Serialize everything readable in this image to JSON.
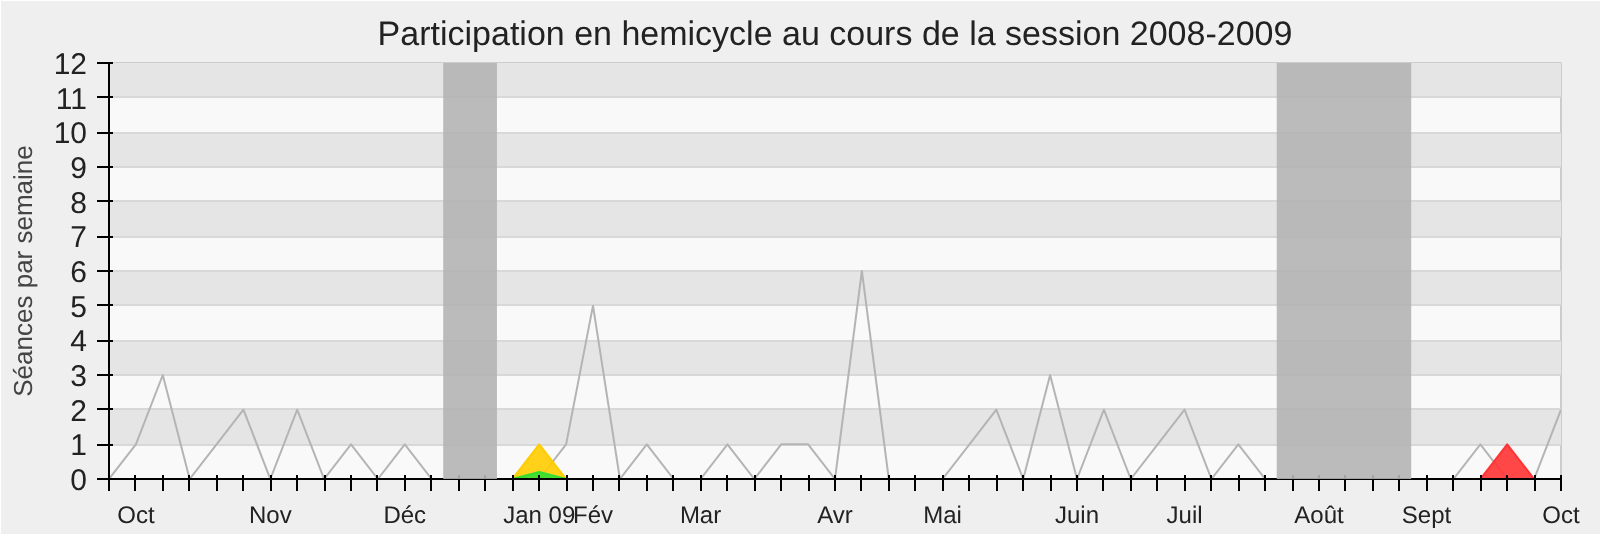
{
  "chart_data": {
    "type": "line",
    "title": "Participation en hemicycle au cours de la session 2008-2009",
    "ylabel": "Séances par semaine",
    "x": [
      "2008-09-29",
      "2008-10-06",
      "2008-10-13",
      "2008-10-20",
      "2008-10-27",
      "2008-11-03",
      "2008-11-10",
      "2008-11-17",
      "2008-11-24",
      "2008-12-01",
      "2008-12-08",
      "2008-12-15",
      "2008-12-22",
      "2008-12-29",
      "2009-01-05",
      "2009-01-12",
      "2009-01-19",
      "2009-01-26",
      "2009-02-02",
      "2009-02-09",
      "2009-02-16",
      "2009-02-23",
      "2009-03-02",
      "2009-03-09",
      "2009-03-16",
      "2009-03-23",
      "2009-03-30",
      "2009-04-06",
      "2009-04-13",
      "2009-04-20",
      "2009-04-27",
      "2009-05-04",
      "2009-05-11",
      "2009-05-18",
      "2009-05-25",
      "2009-06-01",
      "2009-06-08",
      "2009-06-15",
      "2009-06-22",
      "2009-06-29",
      "2009-07-06",
      "2009-07-13",
      "2009-07-20",
      "2009-07-27",
      "2009-08-03",
      "2009-08-10",
      "2009-08-17",
      "2009-08-24",
      "2009-08-31",
      "2009-09-07",
      "2009-09-14",
      "2009-09-21",
      "2009-09-28",
      "2009-10-05",
      "2009-10-12"
    ],
    "series": [
      {
        "color": "#b4b4b4",
        "values": [
          0,
          1,
          3,
          0,
          1,
          2,
          0,
          2,
          0,
          1,
          0,
          1,
          0,
          null,
          null,
          0,
          0,
          1,
          5,
          0,
          1,
          0,
          0,
          1,
          0,
          1,
          1,
          0,
          6,
          0,
          0,
          0,
          1,
          2,
          0,
          3,
          0,
          2,
          0,
          1,
          2,
          0,
          1,
          0,
          null,
          null,
          null,
          null,
          null,
          0,
          0,
          1,
          0,
          0,
          2
        ]
      },
      {
        "type": "area",
        "color": "#ffcc00",
        "x": [
          "2009-01-12",
          "2009-01-19",
          "2009-01-26"
        ],
        "values": [
          0,
          1,
          0
        ]
      },
      {
        "type": "area",
        "color": "#33dd33",
        "x": [
          "2009-01-12",
          "2009-01-19",
          "2009-01-26"
        ],
        "values": [
          0,
          0.2,
          0
        ]
      },
      {
        "type": "area",
        "color": "#ff3333",
        "x": [
          "2009-09-21",
          "2009-09-28",
          "2009-10-05"
        ],
        "values": [
          0,
          1,
          0
        ]
      }
    ],
    "xlim": [
      "2008-09-29",
      "2009-10-12"
    ],
    "xticks": [
      {
        "value": "2008-09-29",
        "label": null
      },
      {
        "value": "2008-10-06",
        "label": "Oct"
      },
      {
        "value": "2008-10-13",
        "label": null
      },
      {
        "value": "2008-10-20",
        "label": null
      },
      {
        "value": "2008-10-27",
        "label": null
      },
      {
        "value": "2008-11-03",
        "label": null
      },
      {
        "value": "2008-11-10",
        "label": "Nov"
      },
      {
        "value": "2008-11-17",
        "label": null
      },
      {
        "value": "2008-11-24",
        "label": null
      },
      {
        "value": "2008-12-01",
        "label": null
      },
      {
        "value": "2008-12-08",
        "label": null
      },
      {
        "value": "2008-12-15",
        "label": "Déc"
      },
      {
        "value": "2008-12-22",
        "label": null
      },
      {
        "value": "2008-12-29",
        "label": null
      },
      {
        "value": "2009-01-05",
        "label": null
      },
      {
        "value": "2009-01-12",
        "label": null
      },
      {
        "value": "2009-01-19",
        "label": "Jan 09"
      },
      {
        "value": "2009-01-26",
        "label": null
      },
      {
        "value": "2009-02-02",
        "label": "Fév"
      },
      {
        "value": "2009-02-09",
        "label": null
      },
      {
        "value": "2009-02-16",
        "label": null
      },
      {
        "value": "2009-02-23",
        "label": null
      },
      {
        "value": "2009-03-02",
        "label": "Mar"
      },
      {
        "value": "2009-03-09",
        "label": null
      },
      {
        "value": "2009-03-16",
        "label": null
      },
      {
        "value": "2009-03-23",
        "label": null
      },
      {
        "value": "2009-03-30",
        "label": null
      },
      {
        "value": "2009-04-06",
        "label": "Avr"
      },
      {
        "value": "2009-04-13",
        "label": null
      },
      {
        "value": "2009-04-20",
        "label": null
      },
      {
        "value": "2009-04-27",
        "label": null
      },
      {
        "value": "2009-05-04",
        "label": "Mai"
      },
      {
        "value": "2009-05-11",
        "label": null
      },
      {
        "value": "2009-05-18",
        "label": null
      },
      {
        "value": "2009-05-25",
        "label": null
      },
      {
        "value": "2009-06-01",
        "label": null
      },
      {
        "value": "2009-06-08",
        "label": "Juin"
      },
      {
        "value": "2009-06-15",
        "label": null
      },
      {
        "value": "2009-06-22",
        "label": null
      },
      {
        "value": "2009-06-29",
        "label": null
      },
      {
        "value": "2009-07-06",
        "label": "Juil"
      },
      {
        "value": "2009-07-13",
        "label": null
      },
      {
        "value": "2009-07-20",
        "label": null
      },
      {
        "value": "2009-07-27",
        "label": null
      },
      {
        "value": "2009-08-03",
        "label": null
      },
      {
        "value": "2009-08-10",
        "label": "Août"
      },
      {
        "value": "2009-08-17",
        "label": null
      },
      {
        "value": "2009-08-24",
        "label": null
      },
      {
        "value": "2009-08-31",
        "label": null
      },
      {
        "value": "2009-09-07",
        "label": "Sept"
      },
      {
        "value": "2009-09-14",
        "label": null
      },
      {
        "value": "2009-09-21",
        "label": null
      },
      {
        "value": "2009-09-28",
        "label": null
      },
      {
        "value": "2009-10-05",
        "label": null
      },
      {
        "value": "2009-10-12",
        "label": "Oct"
      }
    ],
    "ylim": [
      0,
      12
    ],
    "yticks": [
      0,
      1,
      2,
      3,
      4,
      5,
      6,
      7,
      8,
      9,
      10,
      11,
      12
    ],
    "grid": "y",
    "bands": [
      {
        "axis": "x",
        "from": "2008-12-25",
        "to": "2009-01-08",
        "color": "#b4b4b4"
      },
      {
        "axis": "x",
        "from": "2009-07-30",
        "to": "2009-09-03",
        "color": "#b4b4b4"
      }
    ]
  }
}
